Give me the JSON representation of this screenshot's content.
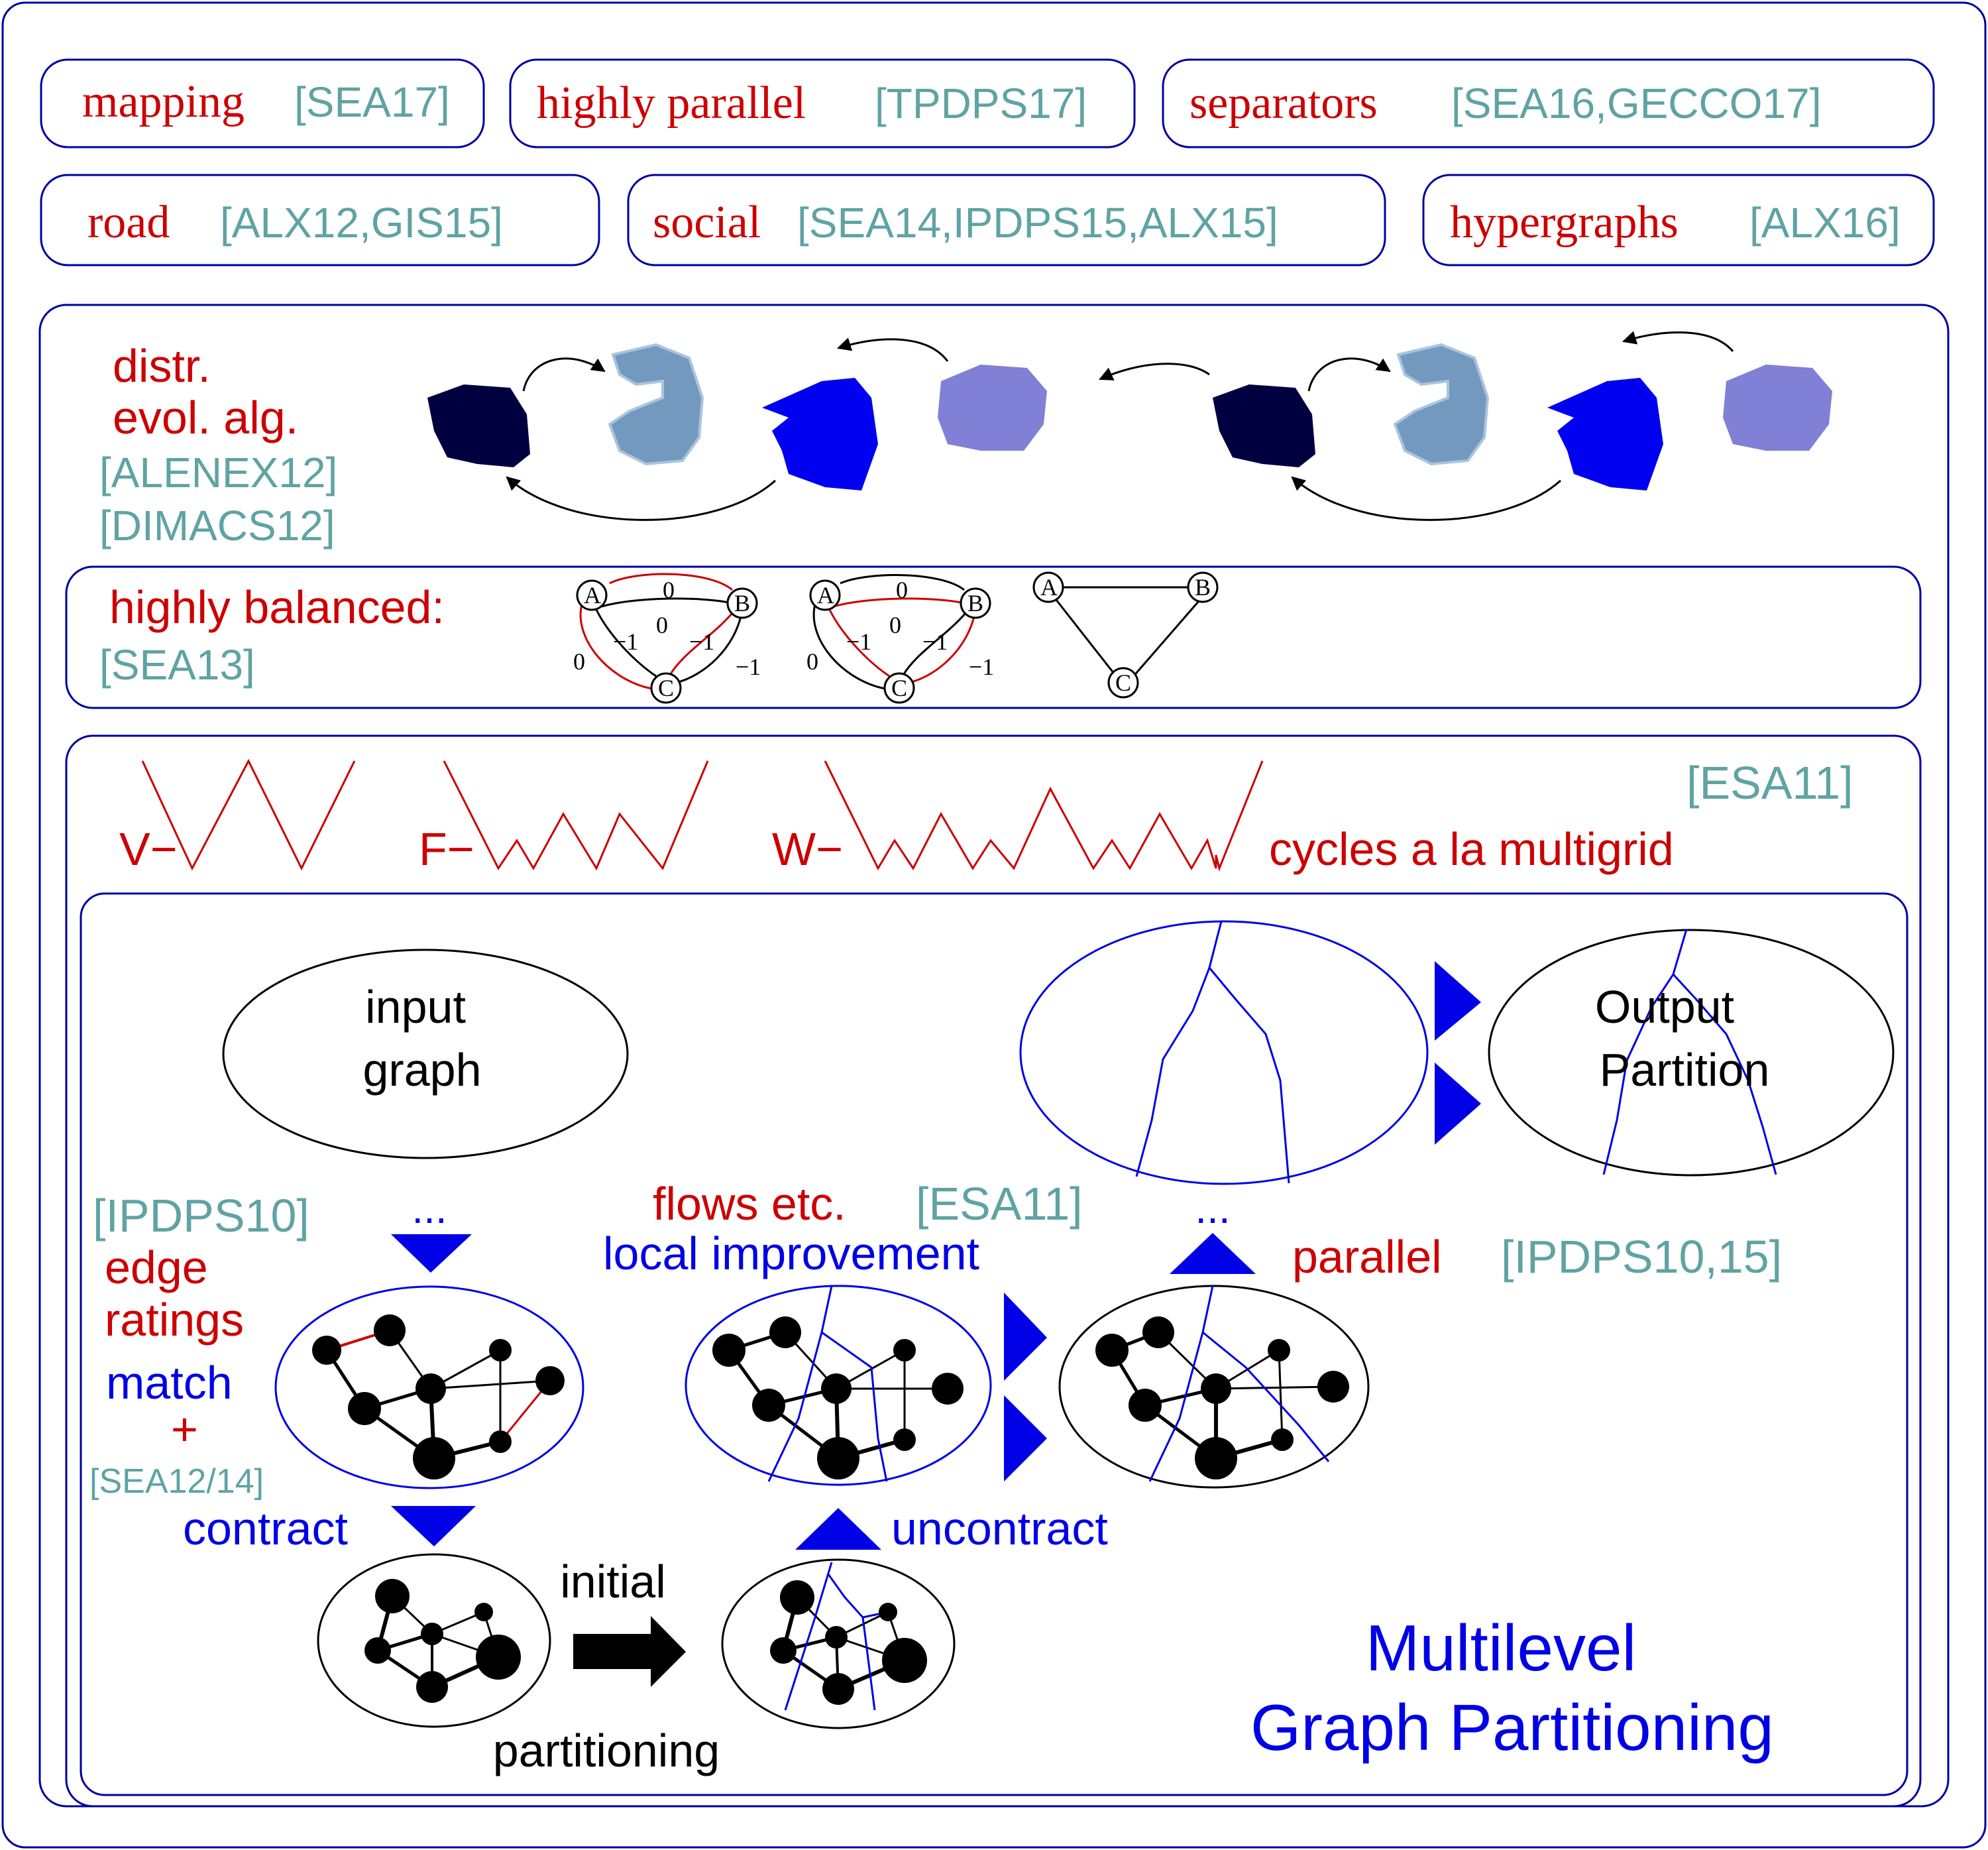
{
  "topics": [
    {
      "term": "mapping",
      "refs": "[SEA17]"
    },
    {
      "term": "highly parallel",
      "refs": "[TPDPS17]"
    },
    {
      "term": "separators",
      "refs": "[SEA16,GECCO17]"
    },
    {
      "term": "road",
      "refs": "[ALX12,GIS15]"
    },
    {
      "term": "social",
      "refs": "[SEA14,IPDPS15,ALX15]"
    },
    {
      "term": "hypergraphs",
      "refs": "[ALX16]"
    }
  ],
  "evo": {
    "label_lines": [
      "distr.",
      "evol. alg."
    ],
    "refs": [
      "[ALENEX12]",
      "[DIMACS12]"
    ]
  },
  "balanced": {
    "label": "highly balanced:",
    "refs": "[SEA13]",
    "node_labels": [
      "A",
      "B",
      "C"
    ],
    "edge_weights": [
      "0",
      "0",
      "−1",
      "−1",
      "0",
      "−1"
    ]
  },
  "cycles": {
    "refs": "[ESA11]",
    "v_label": "V−",
    "f_label": "F−",
    "w_label": "W−",
    "caption": "cycles a la multigrid"
  },
  "multilevel": {
    "input_lines": [
      "input",
      "graph"
    ],
    "output_lines": [
      "Output",
      "Partition"
    ],
    "ipdps_ref": "[IPDPS10]",
    "ellipsis_left": "...",
    "ellipsis_right": "...",
    "edge_lines": [
      "edge",
      "ratings"
    ],
    "match": "match",
    "plus": "+",
    "sea_ref": "[SEA12/14]",
    "contract": "contract",
    "flows": "flows etc.",
    "flows_ref": "[ESA11]",
    "local": "local improvement",
    "parallel": "parallel",
    "parallel_ref": "[IPDPS10,15]",
    "initial": "initial",
    "partitioning": "partitioning",
    "uncontract": "uncontract",
    "title_lines": [
      "Multilevel",
      "Graph Partitioning"
    ]
  },
  "colors": {
    "frame": "#0000A0",
    "term_red": "#CC0000",
    "ref_teal": "#5FA3A3",
    "blue": "#0000E6",
    "navy": "#000040",
    "steel": "#7399BF",
    "bright_blue": "#0000F0",
    "lavender": "#8080D6"
  }
}
